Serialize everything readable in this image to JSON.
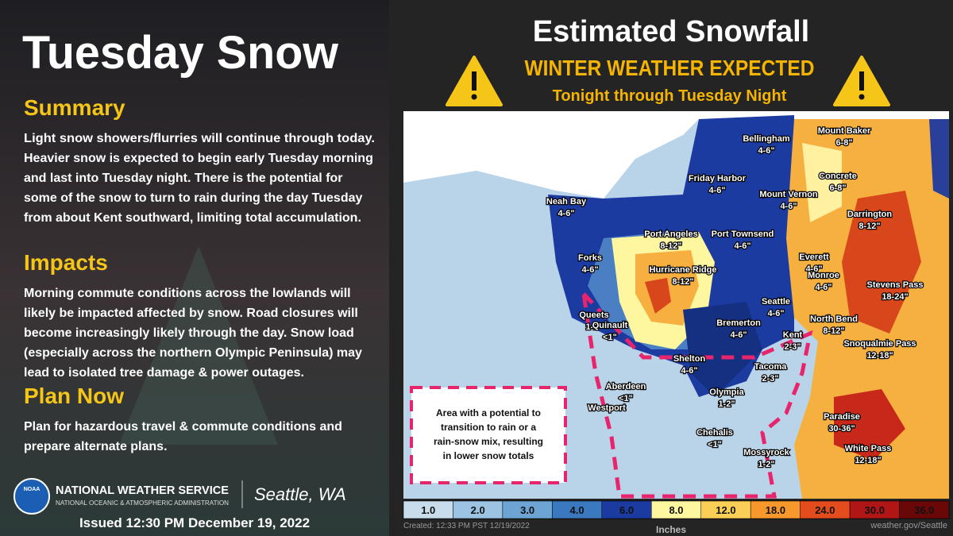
{
  "left": {
    "title": "Tuesday Snow",
    "sections": [
      {
        "heading": "Summary",
        "lines": [
          "Light snow showers/flurries will continue through today.",
          "Heavier snow is expected to begin early Tuesday morning",
          "and last into Tuesday night. There is the potential for",
          "some of the snow to turn to rain during the day Tuesday",
          "from about Kent southward, limiting total accumulation."
        ]
      },
      {
        "heading": "Impacts",
        "lines": [
          "Morning commute conditions across the lowlands will",
          "likely be impacted affected by snow. Road closures will",
          "become increasingly likely through the day. Snow load",
          "(especially across the northern Olympic Peninsula) may",
          "lead to isolated tree damage & power outages."
        ]
      },
      {
        "heading": "Plan Now",
        "lines": [
          "Plan for hazardous travel & commute conditions and",
          "prepare alternate plans."
        ]
      }
    ],
    "agency": "NATIONAL WEATHER SERVICE",
    "agency_sub": "NATIONAL OCEANIC & ATMOSPHERIC ADMINISTRATION",
    "logo": "NOAA",
    "office": "Seattle, WA",
    "issued": "Issued 12:30 PM December 19, 2022"
  },
  "header": {
    "title": "Estimated Snowfall",
    "subtitle": "WINTER WEATHER EXPECTED",
    "period": "Tonight through Tuesday Night"
  },
  "map": {
    "labels": [
      {
        "name": "Mount Baker",
        "amount": "6-8\""
      },
      {
        "name": "Bellingham",
        "amount": "4-6\""
      },
      {
        "name": "Concrete",
        "amount": "6-8\""
      },
      {
        "name": "Friday Harbor",
        "amount": "4-6\""
      },
      {
        "name": "Mount Vernon",
        "amount": "4-6\""
      },
      {
        "name": "Darrington",
        "amount": "8-12\""
      },
      {
        "name": "Neah Bay",
        "amount": "4-6\""
      },
      {
        "name": "Port Angeles",
        "amount": "8-12\""
      },
      {
        "name": "Port Townsend",
        "amount": "4-6\""
      },
      {
        "name": "Forks",
        "amount": "4-6\""
      },
      {
        "name": "Everett",
        "amount": "4-6\""
      },
      {
        "name": "Hurricane Ridge",
        "amount": "8-12\""
      },
      {
        "name": "Monroe",
        "amount": "4-6\""
      },
      {
        "name": "Stevens Pass",
        "amount": "18-24\""
      },
      {
        "name": "Seattle",
        "amount": "4-6\""
      },
      {
        "name": "Queets",
        "amount": "1-2\""
      },
      {
        "name": "North Bend",
        "amount": "8-12\""
      },
      {
        "name": "Quinault",
        "amount": "<1\""
      },
      {
        "name": "Bremerton",
        "amount": "4-6\""
      },
      {
        "name": "Kent",
        "amount": "2-3\""
      },
      {
        "name": "Snoqualmie Pass",
        "amount": "12-18\""
      },
      {
        "name": "Shelton",
        "amount": "4-6\""
      },
      {
        "name": "Tacoma",
        "amount": "2-3\""
      },
      {
        "name": "Aberdeen",
        "amount": "<1\""
      },
      {
        "name": "Olympia",
        "amount": "1-2\""
      },
      {
        "name": "Westport"
      },
      {
        "name": "Paradise",
        "amount": "30-36\""
      },
      {
        "name": "Chehalis",
        "amount": "<1\""
      },
      {
        "name": "White Pass",
        "amount": "12-18\""
      },
      {
        "name": "Mossyrock",
        "amount": "1-2\""
      }
    ],
    "note": [
      "Area with a potential to",
      "transition to rain or a",
      "rain-snow mix, resulting",
      "in lower snow totals"
    ],
    "legend": [
      {
        "label": "1.0",
        "color": "#c9dcec"
      },
      {
        "label": "2.0",
        "color": "#9cc3e2"
      },
      {
        "label": "3.0",
        "color": "#6ca4d4"
      },
      {
        "label": "4.0",
        "color": "#3a78bf"
      },
      {
        "label": "6.0",
        "color": "#1c3ba0"
      },
      {
        "label": "8.0",
        "color": "#fff6a0"
      },
      {
        "label": "12.0",
        "color": "#fbcf55"
      },
      {
        "label": "18.0",
        "color": "#f7982c"
      },
      {
        "label": "24.0",
        "color": "#e44c1e"
      },
      {
        "label": "30.0",
        "color": "#b01616"
      },
      {
        "label": "36.0",
        "color": "#6a0808"
      }
    ],
    "legend_title": "Inches",
    "created": "Created: 12:33 PM PST 12/19/2022",
    "source": "weather.gov/Seattle"
  }
}
